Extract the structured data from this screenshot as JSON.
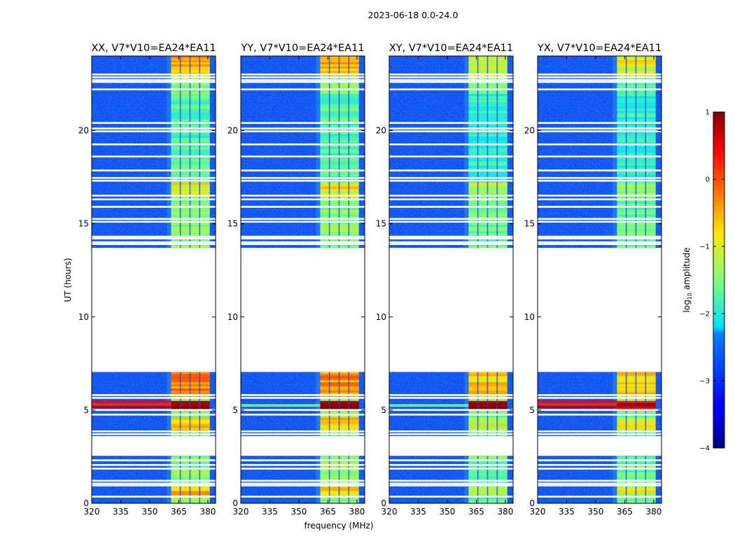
{
  "figure": {
    "suptitle": "2023-06-18 0.0-24.0",
    "xlabel": "frequency (MHz)",
    "ylabel": "UT (hours)"
  },
  "chart_data": {
    "type": "heatmap",
    "colormap": "jet",
    "x_ticks": [
      320,
      335,
      350,
      365,
      380
    ],
    "xlim": [
      320,
      384
    ],
    "y_ticks": [
      0,
      5,
      10,
      15,
      20
    ],
    "ylim": [
      0,
      24
    ],
    "panels": [
      {
        "title": "XX, V7*V10=EA24*EA11"
      },
      {
        "title": "YY, V7*V10=EA24*EA11"
      },
      {
        "title": "XY, V7*V10=EA24*EA11"
      },
      {
        "title": "YX, V7*V10=EA24*EA11"
      }
    ],
    "data_gaps_hours": [
      [
        2.55,
        3.6
      ],
      [
        7.05,
        13.7
      ]
    ],
    "flagged_lines_hours": [
      0.35,
      0.95,
      1.05,
      1.2,
      1.85,
      2.05,
      2.3,
      3.7,
      3.85,
      4.75,
      5.0,
      5.65,
      5.8,
      13.9,
      14.0,
      14.2,
      14.3,
      15.1,
      15.25,
      15.9,
      16.3,
      16.5,
      17.3,
      17.45,
      17.85,
      18.6,
      19.25,
      19.95,
      20.1,
      20.4,
      22.2,
      22.6,
      22.7,
      22.85,
      23.0
    ],
    "rfi_band_mhz": [
      361,
      381
    ],
    "colorbar": {
      "label": "log",
      "label_sub": "10",
      "label_rest": " amplitude",
      "range": [
        -4,
        1
      ],
      "ticks": [
        1,
        0,
        -1,
        -2,
        -3,
        -4
      ],
      "ticklabels": [
        "1",
        "0",
        "−1",
        "−2",
        "−3",
        "−4"
      ]
    }
  }
}
